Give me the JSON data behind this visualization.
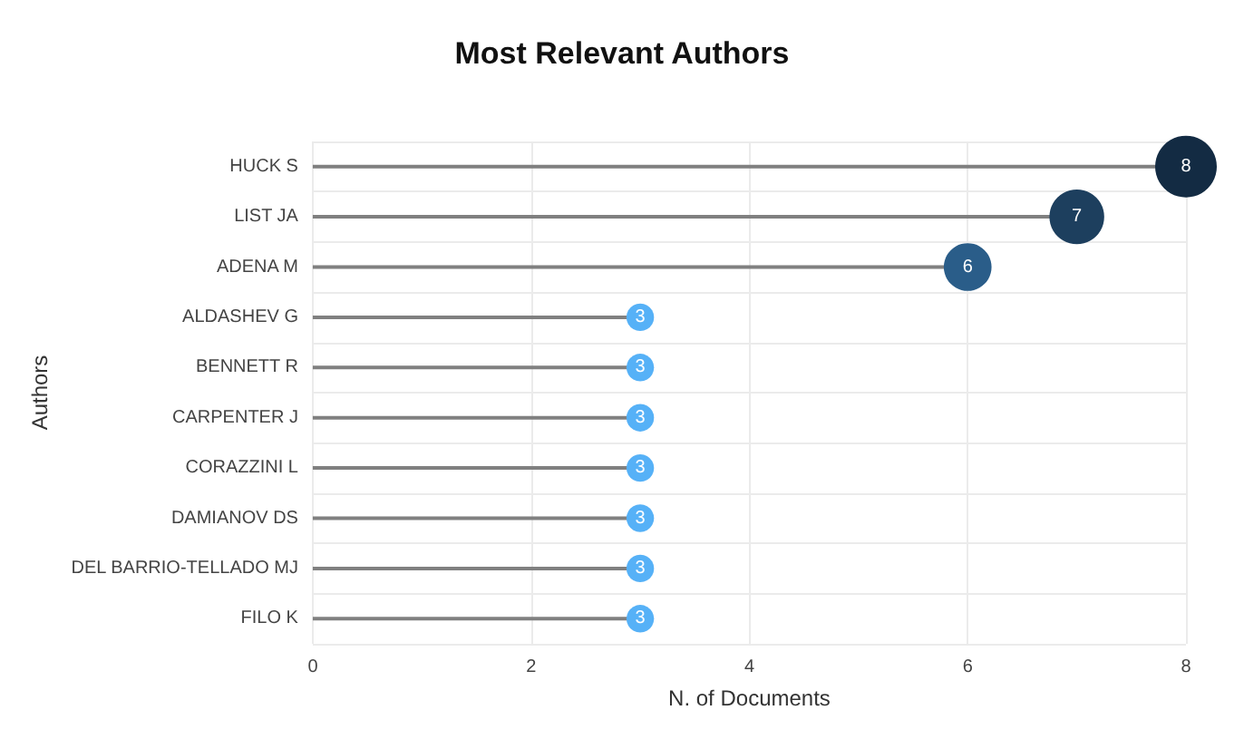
{
  "chart_data": {
    "type": "lollipop",
    "title": "Most Relevant Authors",
    "xlabel": "N. of Documents",
    "ylabel": "Authors",
    "orientation": "horizontal",
    "categories": [
      "HUCK S",
      "LIST JA",
      "ADENA M",
      "ALDASHEV G",
      "BENNETT R",
      "CARPENTER J",
      "CORAZZINI L",
      "DAMIANOV DS",
      "DEL BARRIO-TELLADO MJ",
      "FILO K"
    ],
    "values": [
      8,
      7,
      6,
      3,
      3,
      3,
      3,
      3,
      3,
      3
    ],
    "sizes": [
      1,
      0.79,
      0.6,
      0.2,
      0.2,
      0.2,
      0.2,
      0.2,
      0.2,
      0.2
    ],
    "colors": [
      "#132b43",
      "#1d3f5e",
      "#2a5d89",
      "#56b1f7",
      "#56b1f7",
      "#56b1f7",
      "#56b1f7",
      "#56b1f7",
      "#56b1f7",
      "#56b1f7"
    ],
    "xlim": [
      0,
      8
    ],
    "xticks": [
      0,
      2,
      4,
      6,
      8
    ],
    "grid": true,
    "data_labels": true
  }
}
